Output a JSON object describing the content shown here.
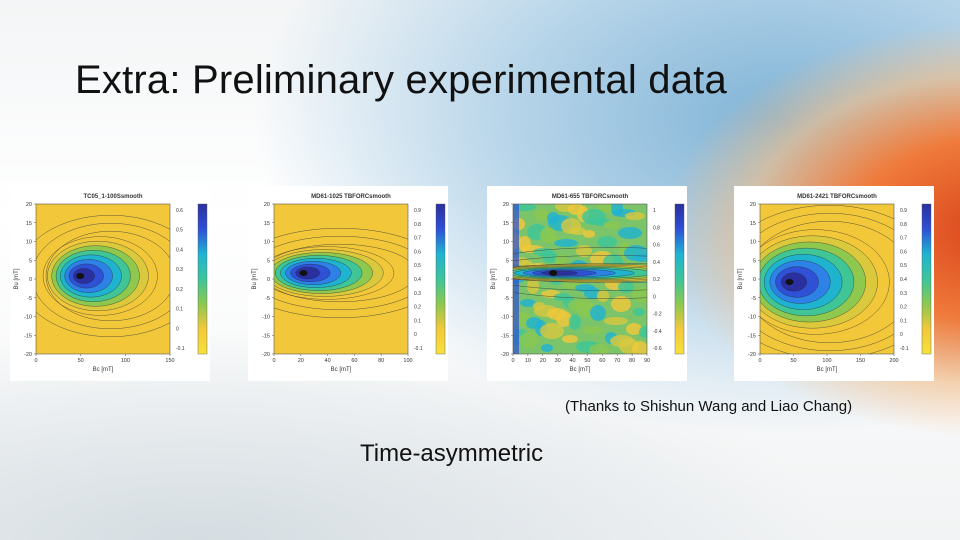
{
  "slide": {
    "title": "Extra: Preliminary experimental data",
    "acknowledgement": "(Thanks to Shishun Wang and Liao Chang)",
    "caption": "Time-asymmetric"
  },
  "plots": [
    {
      "title": "TC05_1-100Ssmooth",
      "xlabel": "Bc [mT]",
      "ylabel": "Bu [mT]",
      "xticks": [
        "0",
        "50",
        "100",
        "150"
      ],
      "yticks": [
        "20",
        "15",
        "10",
        "5",
        "0",
        "-5",
        "-10",
        "-15",
        "-20"
      ],
      "cticks": [
        "0.6",
        "0.5",
        "0.4",
        "0.3",
        "0.2",
        "0.1",
        "0",
        "-0.1"
      ]
    },
    {
      "title": "MD61-1025 TBFORCsmooth",
      "xlabel": "Bc [mT]",
      "ylabel": "Bu [mT]",
      "xticks": [
        "0",
        "20",
        "40",
        "60",
        "80",
        "100"
      ],
      "yticks": [
        "20",
        "15",
        "10",
        "5",
        "0",
        "-5",
        "-10",
        "-15",
        "-20"
      ],
      "cticks": [
        "0.9",
        "0.8",
        "0.7",
        "0.6",
        "0.5",
        "0.4",
        "0.3",
        "0.2",
        "0.1",
        "0",
        "-0.1"
      ]
    },
    {
      "title": "MD61-655 TBFORCsmooth",
      "xlabel": "Bc [mT]",
      "ylabel": "Bu [mT]",
      "xticks": [
        "0",
        "10",
        "20",
        "30",
        "40",
        "50",
        "60",
        "70",
        "80",
        "90"
      ],
      "yticks": [
        "20",
        "15",
        "10",
        "5",
        "0",
        "-5",
        "-10",
        "-15",
        "-20"
      ],
      "cticks": [
        "1",
        "0.8",
        "0.6",
        "0.4",
        "0.2",
        "0",
        "-0.2",
        "-0.4",
        "-0.6"
      ]
    },
    {
      "title": "MD61-2421 TBFORCsmooth",
      "xlabel": "Bc [mT]",
      "ylabel": "Bu [mT]",
      "xticks": [
        "0",
        "50",
        "100",
        "150",
        "200"
      ],
      "yticks": [
        "20",
        "15",
        "10",
        "5",
        "0",
        "-5",
        "-10",
        "-15",
        "-20"
      ],
      "cticks": [
        "0.9",
        "0.8",
        "0.7",
        "0.6",
        "0.5",
        "0.4",
        "0.3",
        "0.2",
        "0.1",
        "0",
        "-0.1"
      ]
    }
  ],
  "colors": {
    "background_yellow": "#f2c83a",
    "peak_blue": "#2a35b0",
    "contour": "#222222"
  }
}
